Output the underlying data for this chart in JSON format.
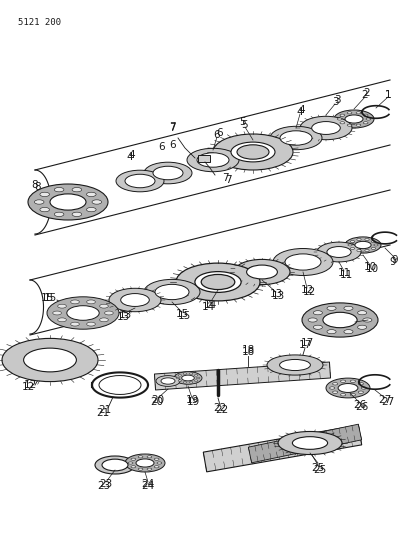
{
  "part_number_label": "5121 200",
  "background_color": "#ffffff",
  "line_color": "#1a1a1a",
  "gear_fill": "#c8c8c8",
  "bearing_fill": "#b0b0b0",
  "shaft_fill": "#d0d0d0",
  "ring_fill": "#e8e8e8",
  "fig_width": 4.1,
  "fig_height": 5.33,
  "dpi": 100
}
